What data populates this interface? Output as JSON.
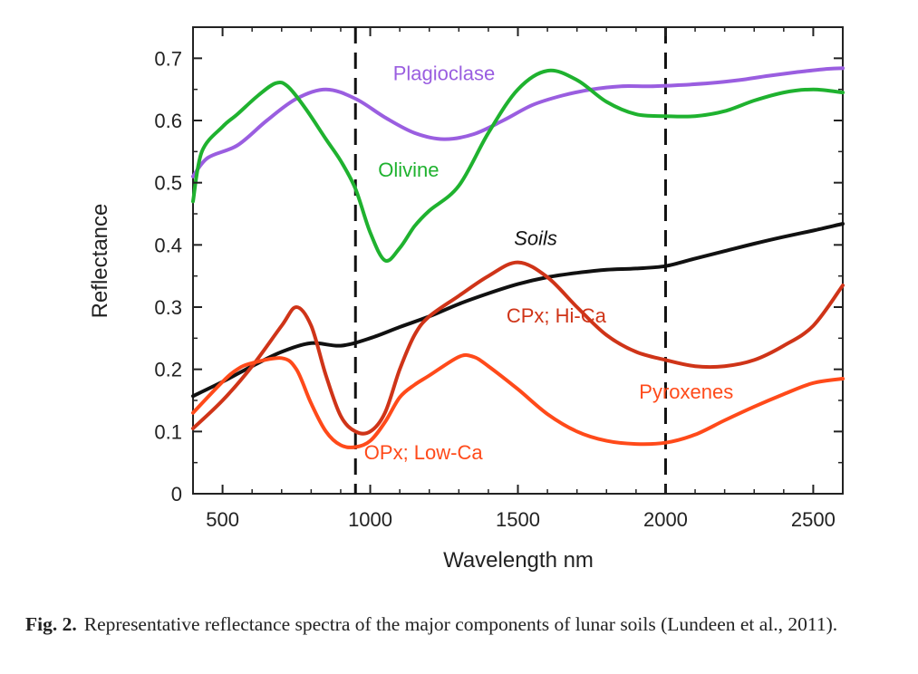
{
  "chart_data": {
    "type": "line",
    "xlabel": "Wavelength nm",
    "ylabel": "Reflectance",
    "xlim": [
      400,
      2600
    ],
    "ylim": [
      0,
      0.75
    ],
    "x_ticks": [
      500,
      1000,
      1500,
      2000,
      2500
    ],
    "x_tick_labels": [
      "500",
      "1000",
      "1500",
      "2000",
      "2500"
    ],
    "y_ticks": [
      0,
      0.1,
      0.2,
      0.3,
      0.4,
      0.5,
      0.6,
      0.7
    ],
    "y_tick_labels": [
      "0",
      "0.1",
      "0.2",
      "0.3",
      "0.4",
      "0.5",
      "0.6",
      "0.7"
    ],
    "reference_lines_x": [
      950,
      2000
    ],
    "group_label": "Pyroxenes",
    "series": [
      {
        "name": "Plagioclase",
        "color": "#9a5ee0",
        "points": [
          [
            400,
            0.51
          ],
          [
            450,
            0.54
          ],
          [
            550,
            0.56
          ],
          [
            650,
            0.6
          ],
          [
            750,
            0.635
          ],
          [
            850,
            0.65
          ],
          [
            950,
            0.635
          ],
          [
            1050,
            0.605
          ],
          [
            1150,
            0.58
          ],
          [
            1250,
            0.57
          ],
          [
            1350,
            0.578
          ],
          [
            1450,
            0.6
          ],
          [
            1550,
            0.625
          ],
          [
            1650,
            0.64
          ],
          [
            1750,
            0.65
          ],
          [
            1850,
            0.655
          ],
          [
            1950,
            0.655
          ],
          [
            2050,
            0.657
          ],
          [
            2150,
            0.66
          ],
          [
            2250,
            0.665
          ],
          [
            2350,
            0.672
          ],
          [
            2450,
            0.678
          ],
          [
            2550,
            0.683
          ],
          [
            2600,
            0.684
          ]
        ]
      },
      {
        "name": "Olivine",
        "color": "#1fb22f",
        "points": [
          [
            400,
            0.47
          ],
          [
            430,
            0.55
          ],
          [
            500,
            0.59
          ],
          [
            550,
            0.61
          ],
          [
            620,
            0.64
          ],
          [
            680,
            0.66
          ],
          [
            720,
            0.655
          ],
          [
            780,
            0.62
          ],
          [
            850,
            0.57
          ],
          [
            900,
            0.535
          ],
          [
            950,
            0.49
          ],
          [
            1000,
            0.42
          ],
          [
            1050,
            0.375
          ],
          [
            1100,
            0.395
          ],
          [
            1150,
            0.43
          ],
          [
            1200,
            0.455
          ],
          [
            1300,
            0.495
          ],
          [
            1400,
            0.58
          ],
          [
            1500,
            0.65
          ],
          [
            1600,
            0.68
          ],
          [
            1700,
            0.665
          ],
          [
            1800,
            0.63
          ],
          [
            1900,
            0.61
          ],
          [
            2000,
            0.607
          ],
          [
            2100,
            0.607
          ],
          [
            2200,
            0.615
          ],
          [
            2300,
            0.632
          ],
          [
            2400,
            0.645
          ],
          [
            2500,
            0.65
          ],
          [
            2600,
            0.645
          ]
        ]
      },
      {
        "name": "Soils",
        "color": "#111111",
        "points": [
          [
            400,
            0.157
          ],
          [
            500,
            0.18
          ],
          [
            600,
            0.205
          ],
          [
            700,
            0.228
          ],
          [
            800,
            0.242
          ],
          [
            900,
            0.238
          ],
          [
            1000,
            0.25
          ],
          [
            1100,
            0.268
          ],
          [
            1200,
            0.285
          ],
          [
            1300,
            0.305
          ],
          [
            1400,
            0.322
          ],
          [
            1500,
            0.337
          ],
          [
            1600,
            0.348
          ],
          [
            1700,
            0.355
          ],
          [
            1800,
            0.36
          ],
          [
            1900,
            0.362
          ],
          [
            2000,
            0.366
          ],
          [
            2100,
            0.378
          ],
          [
            2200,
            0.39
          ],
          [
            2300,
            0.402
          ],
          [
            2400,
            0.413
          ],
          [
            2500,
            0.423
          ],
          [
            2600,
            0.434
          ]
        ]
      },
      {
        "name": "CPx; Hi-Ca",
        "color": "#cf3418",
        "points": [
          [
            400,
            0.105
          ],
          [
            500,
            0.15
          ],
          [
            600,
            0.205
          ],
          [
            700,
            0.27
          ],
          [
            750,
            0.3
          ],
          [
            800,
            0.27
          ],
          [
            850,
            0.19
          ],
          [
            900,
            0.125
          ],
          [
            950,
            0.1
          ],
          [
            1000,
            0.1
          ],
          [
            1050,
            0.13
          ],
          [
            1100,
            0.2
          ],
          [
            1150,
            0.255
          ],
          [
            1200,
            0.285
          ],
          [
            1300,
            0.318
          ],
          [
            1400,
            0.35
          ],
          [
            1500,
            0.372
          ],
          [
            1600,
            0.348
          ],
          [
            1700,
            0.3
          ],
          [
            1800,
            0.255
          ],
          [
            1900,
            0.228
          ],
          [
            2000,
            0.215
          ],
          [
            2100,
            0.205
          ],
          [
            2200,
            0.205
          ],
          [
            2300,
            0.215
          ],
          [
            2400,
            0.238
          ],
          [
            2500,
            0.27
          ],
          [
            2600,
            0.335
          ]
        ]
      },
      {
        "name": "OPx; Low-Ca",
        "color": "#ff4a1a",
        "points": [
          [
            400,
            0.13
          ],
          [
            500,
            0.18
          ],
          [
            550,
            0.2
          ],
          [
            600,
            0.21
          ],
          [
            700,
            0.218
          ],
          [
            750,
            0.2
          ],
          [
            800,
            0.145
          ],
          [
            850,
            0.1
          ],
          [
            900,
            0.078
          ],
          [
            950,
            0.075
          ],
          [
            1000,
            0.085
          ],
          [
            1050,
            0.115
          ],
          [
            1100,
            0.155
          ],
          [
            1150,
            0.175
          ],
          [
            1200,
            0.19
          ],
          [
            1300,
            0.22
          ],
          [
            1350,
            0.22
          ],
          [
            1400,
            0.205
          ],
          [
            1500,
            0.168
          ],
          [
            1600,
            0.128
          ],
          [
            1700,
            0.1
          ],
          [
            1800,
            0.085
          ],
          [
            1900,
            0.08
          ],
          [
            2000,
            0.082
          ],
          [
            2100,
            0.095
          ],
          [
            2200,
            0.118
          ],
          [
            2300,
            0.14
          ],
          [
            2400,
            0.16
          ],
          [
            2500,
            0.178
          ],
          [
            2600,
            0.185
          ]
        ]
      }
    ],
    "labels": [
      {
        "text": "Plagioclase",
        "series": 0,
        "at": [
          1250,
          0.665
        ]
      },
      {
        "text": "Olivine",
        "series": 1,
        "at": [
          1130,
          0.51
        ]
      },
      {
        "text": "Soils",
        "series": 2,
        "at": [
          1560,
          0.4
        ]
      },
      {
        "text": "CPx; Hi-Ca",
        "series": 3,
        "at": [
          1630,
          0.275
        ]
      },
      {
        "text": "OPx; Low-Ca",
        "series": 4,
        "at": [
          1180,
          0.055
        ]
      },
      {
        "text": "Pyroxenes",
        "series": 4,
        "at": [
          2070,
          0.153
        ]
      }
    ]
  },
  "caption": {
    "figure_label": "Fig. 2.",
    "text": "Representative reflectance spectra of the major components of lunar soils (Lundeen et al., 2011)."
  }
}
